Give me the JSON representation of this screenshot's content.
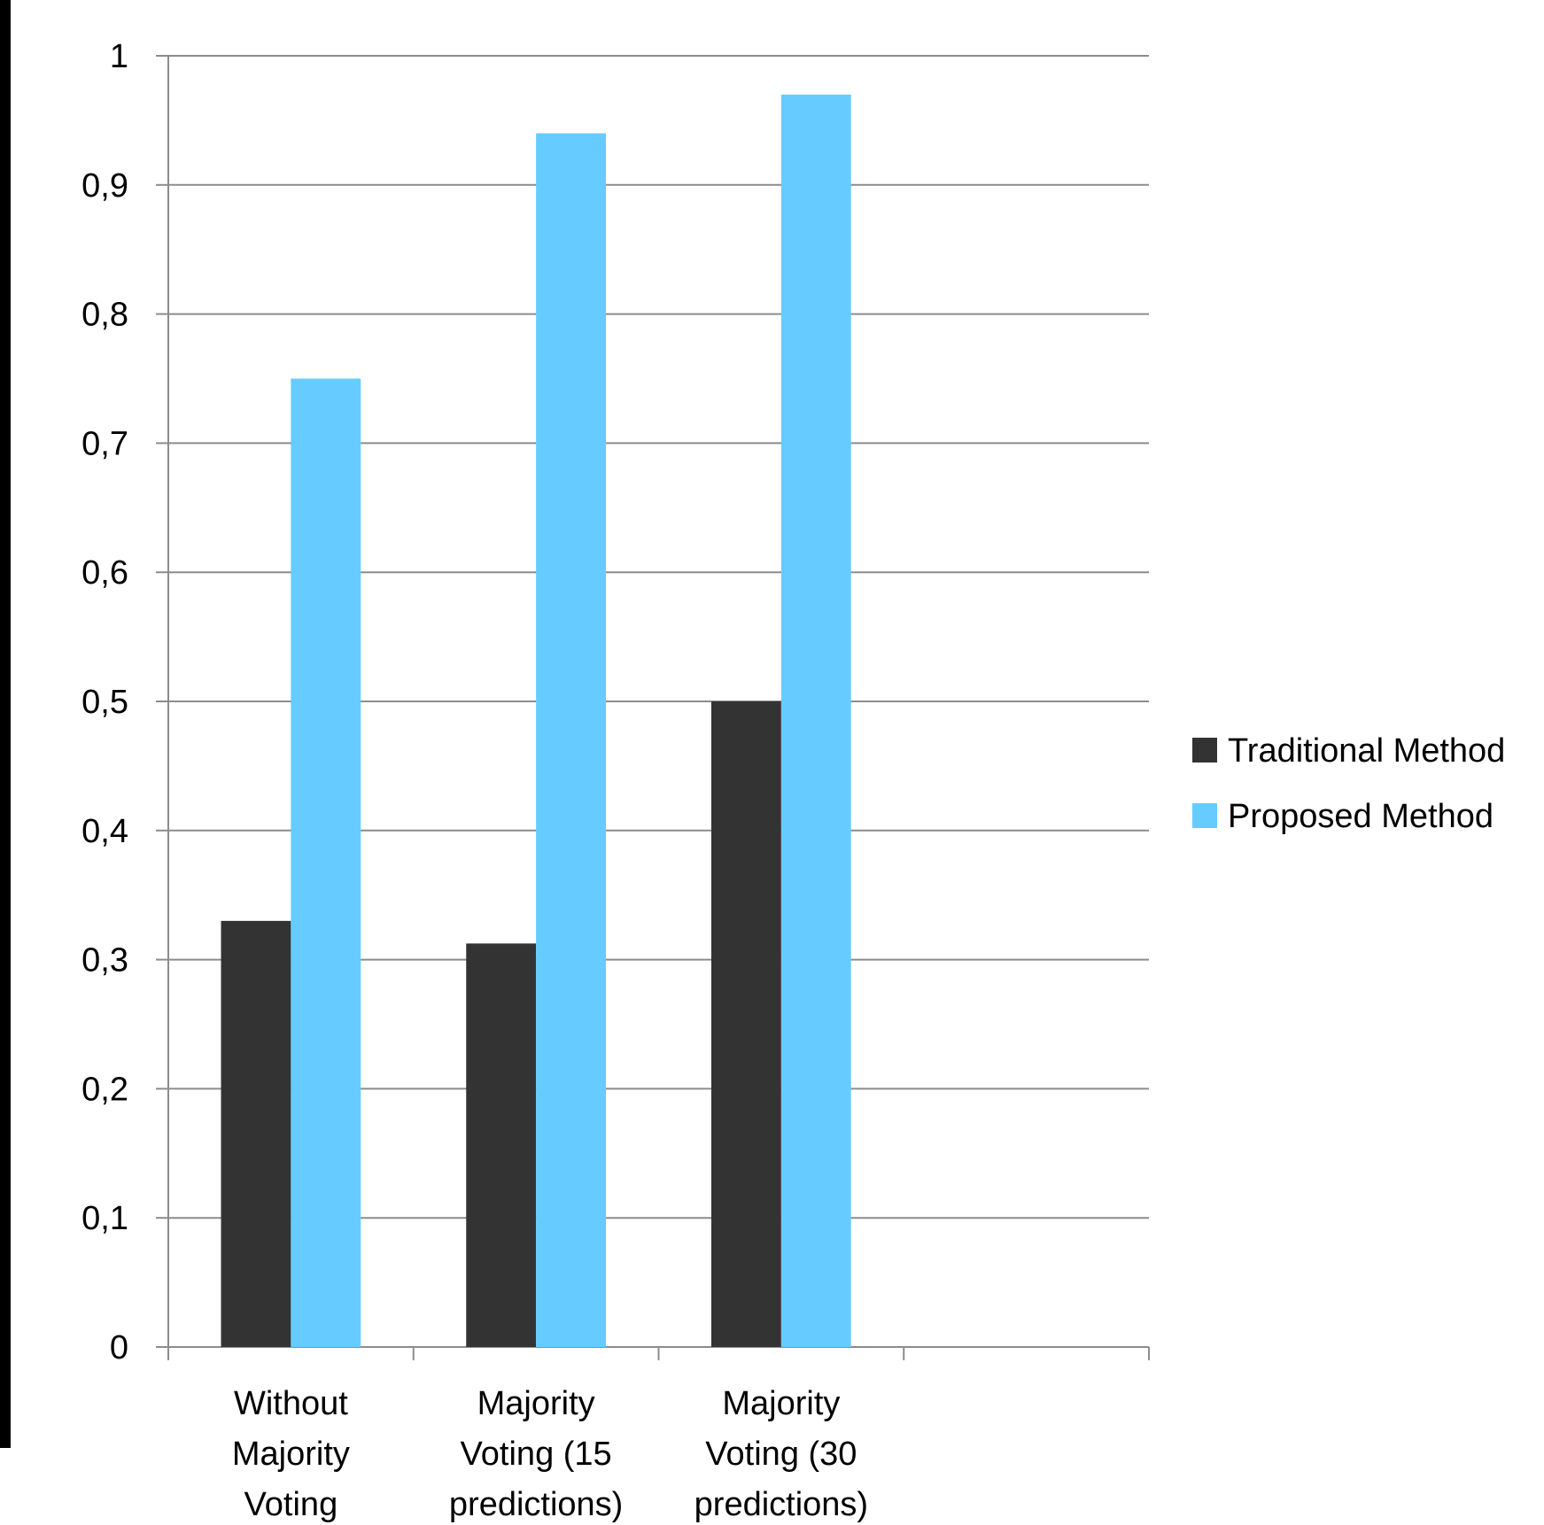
{
  "chart_data": {
    "type": "bar",
    "title": "",
    "xlabel": "",
    "ylabel": "",
    "ylim": [
      0,
      1
    ],
    "yticks": [
      "0",
      "0,1",
      "0,2",
      "0,3",
      "0,4",
      "0,5",
      "0,6",
      "0,7",
      "0,8",
      "0,9",
      "1"
    ],
    "categories": [
      [
        "Without",
        "Majority",
        "Voting"
      ],
      [
        "Majority",
        "Voting (15",
        "predictions)"
      ],
      [
        "Majority",
        "Voting (30",
        "predictions)"
      ],
      [
        ""
      ]
    ],
    "series": [
      {
        "name": "Traditional Method",
        "color": "#333333",
        "values": [
          0.33,
          0.3125,
          0.5,
          null
        ]
      },
      {
        "name": "Proposed Method",
        "color": "#66CCFF",
        "values": [
          0.75,
          0.94,
          0.97,
          null
        ]
      }
    ],
    "grid": true,
    "legend_position": "right"
  }
}
